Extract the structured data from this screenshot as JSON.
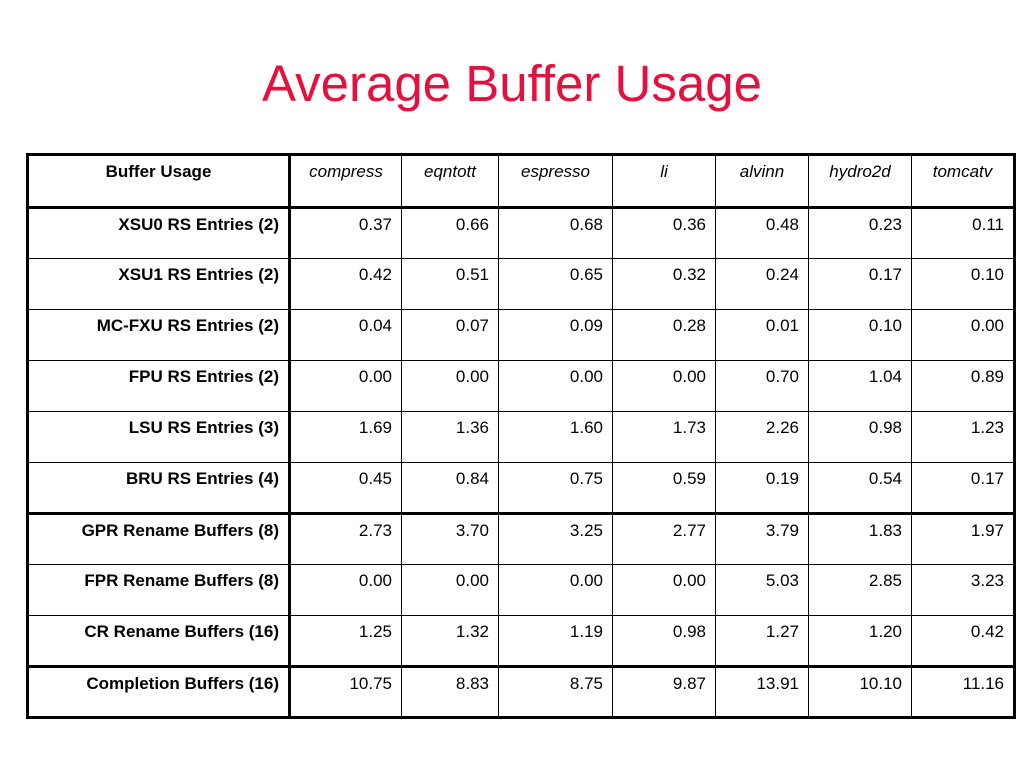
{
  "title": "Average Buffer Usage",
  "table": {
    "corner_label": "Buffer Usage",
    "columns": [
      "compress",
      "eqntott",
      "espresso",
      "li",
      "alvinn",
      "hydro2d",
      "tomcatv"
    ],
    "rows": [
      {
        "label": "XSU0 RS Entries (2)",
        "values": [
          "0.37",
          "0.66",
          "0.68",
          "0.36",
          "0.48",
          "0.23",
          "0.11"
        ]
      },
      {
        "label": "XSU1 RS Entries (2)",
        "values": [
          "0.42",
          "0.51",
          "0.65",
          "0.32",
          "0.24",
          "0.17",
          "0.10"
        ]
      },
      {
        "label": "MC-FXU RS Entries (2)",
        "values": [
          "0.04",
          "0.07",
          "0.09",
          "0.28",
          "0.01",
          "0.10",
          "0.00"
        ]
      },
      {
        "label": "FPU RS Entries (2)",
        "values": [
          "0.00",
          "0.00",
          "0.00",
          "0.00",
          "0.70",
          "1.04",
          "0.89"
        ]
      },
      {
        "label": "LSU RS Entries (3)",
        "values": [
          "1.69",
          "1.36",
          "1.60",
          "1.73",
          "2.26",
          "0.98",
          "1.23"
        ]
      },
      {
        "label": "BRU RS Entries (4)",
        "values": [
          "0.45",
          "0.84",
          "0.75",
          "0.59",
          "0.19",
          "0.54",
          "0.17"
        ]
      },
      {
        "label": "GPR Rename Buffers (8)",
        "values": [
          "2.73",
          "3.70",
          "3.25",
          "2.77",
          "3.79",
          "1.83",
          "1.97"
        ]
      },
      {
        "label": "FPR Rename Buffers (8)",
        "values": [
          "0.00",
          "0.00",
          "0.00",
          "0.00",
          "5.03",
          "2.85",
          "3.23"
        ]
      },
      {
        "label": "CR Rename Buffers (16)",
        "values": [
          "1.25",
          "1.32",
          "1.19",
          "0.98",
          "1.27",
          "1.20",
          "0.42"
        ]
      },
      {
        "label": "Completion Buffers (16)",
        "values": [
          "10.75",
          "8.83",
          "8.75",
          "9.87",
          "13.91",
          "10.10",
          "11.16"
        ]
      }
    ]
  },
  "colors": {
    "title": "#e4103d",
    "text": "#000000",
    "background": "#ffffff"
  }
}
